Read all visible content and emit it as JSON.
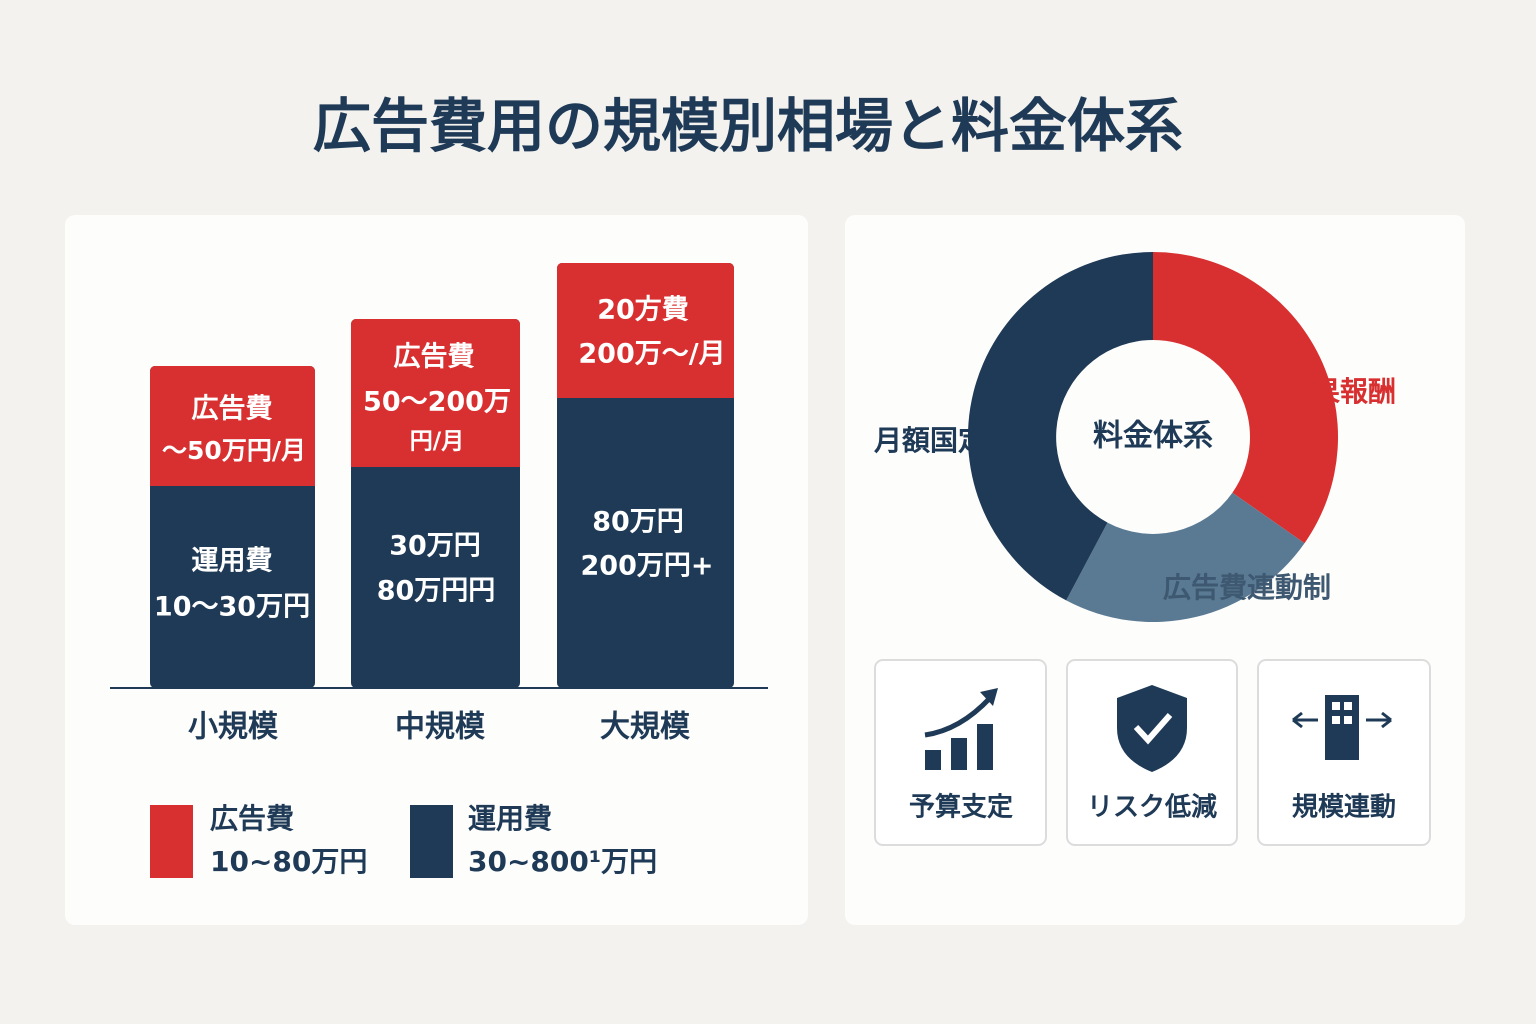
{
  "title": "広告費用の規模別相場と料金体系",
  "bar_chart": {
    "bars": [
      {
        "category": "小規模",
        "top_lines": [
          "広告費",
          "〜50万円/月"
        ],
        "bottom_lines": [
          "運用費",
          "10〜30万円"
        ]
      },
      {
        "category": "中規模",
        "top_lines": [
          "広告費",
          "50〜200万",
          "円/月"
        ],
        "bottom_lines": [
          "30万円",
          "80万円円"
        ]
      },
      {
        "category": "大規模",
        "top_lines": [
          "20方費",
          "200万〜/月"
        ],
        "bottom_lines": [
          "80万円",
          "200万円+"
        ]
      }
    ],
    "legend": [
      {
        "label": "広告費",
        "range": "10~80万円"
      },
      {
        "label": "運用費",
        "range": "30~800¹万円"
      }
    ]
  },
  "donut": {
    "center": "料金体系",
    "segments": [
      "成果報酬",
      "広告費連動制",
      "月額国定制"
    ]
  },
  "cards": [
    "予算支定",
    "リスク低減",
    "規模連動"
  ]
}
